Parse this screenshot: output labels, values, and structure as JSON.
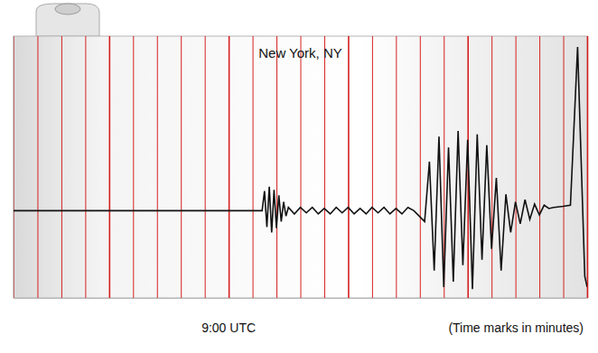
{
  "chart_data": {
    "type": "line",
    "title": "New York, NY",
    "x_label": "(Time marks in minutes)",
    "annotations": [
      {
        "x": 0,
        "text": "9:00 UTC"
      }
    ],
    "x": [
      -9,
      1.4,
      1.5,
      1.6,
      1.7,
      1.8,
      1.9,
      2.0,
      2.1,
      2.2,
      2.3,
      2.4,
      2.5,
      2.75,
      3.0,
      3.25,
      3.5,
      3.75,
      4.0,
      4.25,
      4.5,
      4.75,
      5.0,
      5.25,
      5.5,
      5.75,
      6.0,
      6.25,
      6.5,
      6.75,
      7.0,
      7.25,
      7.5,
      7.75,
      8.2,
      8.4,
      8.6,
      8.8,
      9.0,
      9.2,
      9.4,
      9.6,
      9.8,
      10.0,
      10.2,
      10.4,
      10.6,
      10.8,
      11.0,
      11.2,
      11.4,
      11.6,
      11.8,
      12.0,
      12.2,
      12.4,
      12.6,
      12.8,
      13.0,
      13.2,
      13.4,
      13.6,
      14.0,
      14.3,
      14.6,
      14.9,
      15.0
    ],
    "values": [
      0,
      0,
      1.8,
      -1.5,
      2.2,
      -2.0,
      1.9,
      -1.6,
      1.4,
      -1.0,
      0.8,
      -0.5,
      0.3,
      -0.3,
      0.3,
      -0.2,
      0.3,
      -0.3,
      0.2,
      -0.3,
      0.3,
      -0.2,
      0.3,
      -0.3,
      0.2,
      -0.3,
      0.3,
      -0.2,
      0.3,
      -0.3,
      0.2,
      -0.3,
      0.3,
      0,
      -1.0,
      4.5,
      -5.5,
      6.8,
      -7.0,
      5.8,
      -6.5,
      7.3,
      -5.0,
      6.5,
      -7.2,
      7.0,
      -4.5,
      6.0,
      -3.5,
      3.0,
      -5.5,
      1.5,
      -2.0,
      0.8,
      -1.2,
      1.0,
      -0.8,
      0.6,
      -0.4,
      0.5,
      0.2,
      0.3,
      0.4,
      0.5,
      15.0,
      -6.0,
      -7.0
    ],
    "color": "#111111",
    "xlim": [
      -9,
      15
    ],
    "xticks": [
      -9,
      -8,
      -7,
      -6,
      -5,
      -4,
      -3,
      -2,
      -1,
      0,
      1,
      2,
      3,
      4,
      5,
      6,
      7,
      8,
      9,
      10,
      11,
      12,
      13,
      14,
      15
    ],
    "ylim": [
      -8,
      16
    ],
    "grid": true,
    "tick_labels": false
  }
}
